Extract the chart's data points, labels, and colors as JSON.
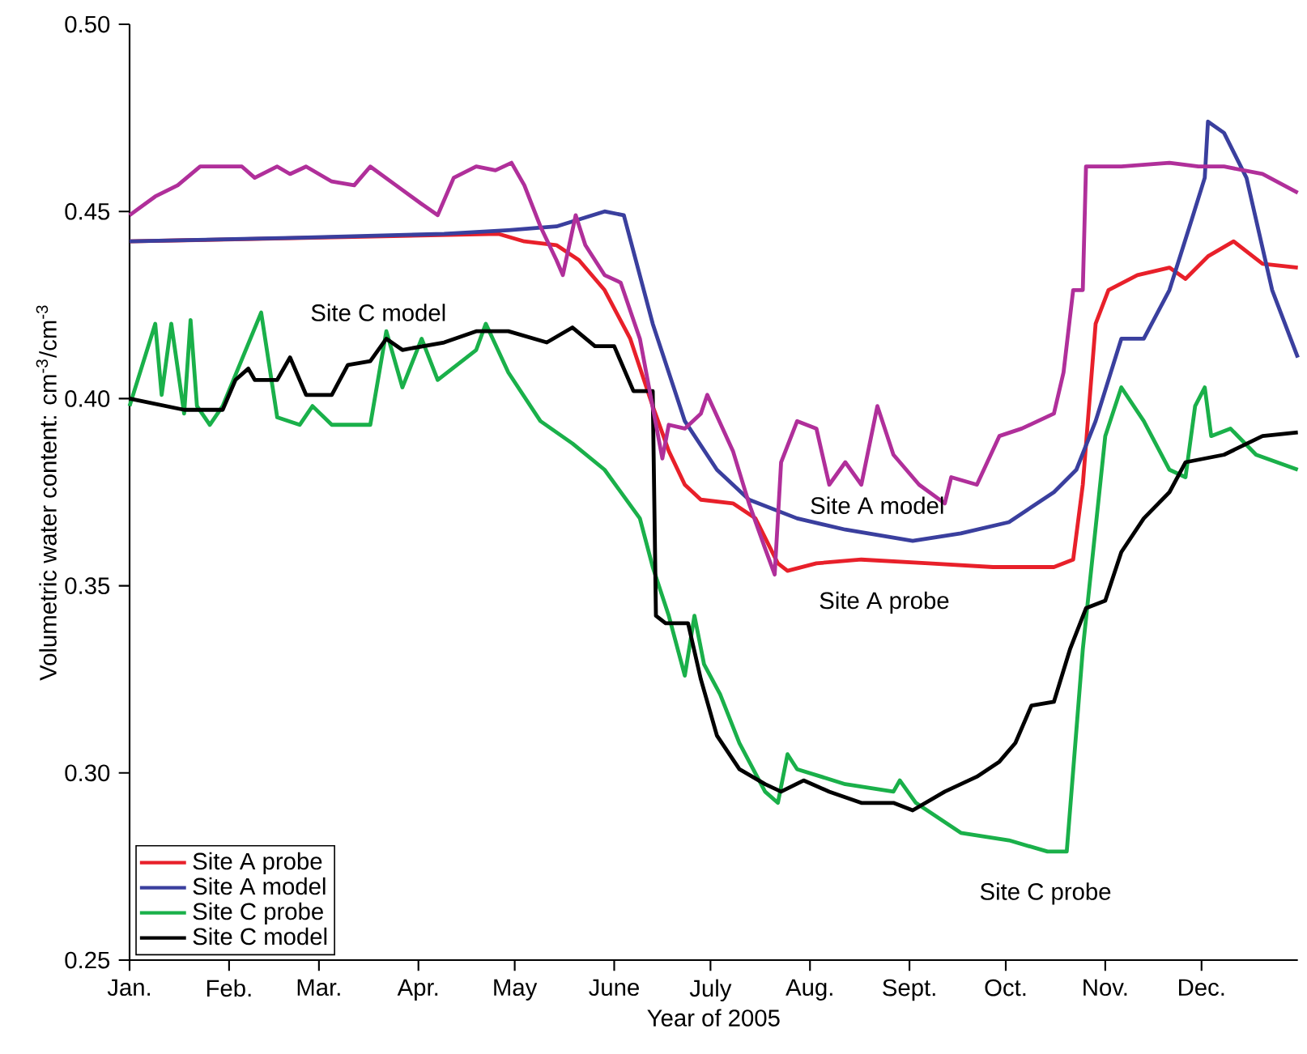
{
  "chart_data": {
    "type": "line",
    "xlabel": "Year of 2005",
    "ylabel": "Volumetric water content: cm$^{-3}$/cm$^{-3}$",
    "xlim": [
      "2005-01-01",
      "2005-12-31"
    ],
    "ylim": [
      0.25,
      0.5
    ],
    "xticks": [
      {
        "value": "2005-01-01",
        "label": "Jan."
      },
      {
        "value": "2005-02-01",
        "label": "Feb."
      },
      {
        "value": "2005-03-01",
        "label": "Mar."
      },
      {
        "value": "2005-04-01",
        "label": "Apr."
      },
      {
        "value": "2005-05-01",
        "label": "May"
      },
      {
        "value": "2005-06-01",
        "label": "June"
      },
      {
        "value": "2005-07-01",
        "label": "July"
      },
      {
        "value": "2005-08-01",
        "label": "Aug."
      },
      {
        "value": "2005-09-01",
        "label": "Sept."
      },
      {
        "value": "2005-10-01",
        "label": "Oct."
      },
      {
        "value": "2005-11-01",
        "label": "Nov."
      },
      {
        "value": "2005-12-01",
        "label": "Dec."
      }
    ],
    "yticks": [
      {
        "value": 0.25,
        "label": "0.25"
      },
      {
        "value": 0.3,
        "label": "0.30"
      },
      {
        "value": 0.35,
        "label": "0.35"
      },
      {
        "value": 0.4,
        "label": "0.40"
      },
      {
        "value": 0.45,
        "label": "0.45"
      },
      {
        "value": 0.5,
        "label": "0.50"
      }
    ],
    "legend": "bottom left",
    "series": [
      {
        "name": "Site A probe",
        "color": "#e8202a",
        "x": [
          "2005-01-01",
          "2005-04-26",
          "2005-05-04",
          "2005-05-14",
          "2005-05-21",
          "2005-05-29",
          "2005-06-06",
          "2005-06-13",
          "2005-06-18",
          "2005-06-23",
          "2005-06-28",
          "2005-07-08",
          "2005-07-15",
          "2005-07-22",
          "2005-07-25",
          "2005-08-03",
          "2005-08-17",
          "2005-09-07",
          "2005-09-27",
          "2005-10-16",
          "2005-10-22",
          "2005-10-25",
          "2005-10-29",
          "2005-11-02",
          "2005-11-11",
          "2005-11-21",
          "2005-11-26",
          "2005-12-03",
          "2005-12-11",
          "2005-12-20",
          "2005-12-31"
        ],
        "values": [
          0.442,
          0.444,
          0.442,
          0.441,
          0.437,
          0.429,
          0.416,
          0.398,
          0.386,
          0.377,
          0.373,
          0.372,
          0.368,
          0.356,
          0.354,
          0.356,
          0.357,
          0.356,
          0.355,
          0.355,
          0.357,
          0.377,
          0.42,
          0.429,
          0.433,
          0.435,
          0.432,
          0.438,
          0.442,
          0.436,
          0.435
        ]
      },
      {
        "name": "Site A model",
        "color": "#3a3f9e",
        "x": [
          "2005-01-01",
          "2005-02-23",
          "2005-04-09",
          "2005-04-29",
          "2005-05-14",
          "2005-05-29",
          "2005-06-04",
          "2005-06-13",
          "2005-06-23",
          "2005-07-03",
          "2005-07-13",
          "2005-07-28",
          "2005-08-12",
          "2005-09-02",
          "2005-09-17",
          "2005-10-02",
          "2005-10-16",
          "2005-10-23",
          "2005-10-29",
          "2005-11-06",
          "2005-11-13",
          "2005-11-21",
          "2005-11-28",
          "2005-12-02",
          "2005-12-03",
          "2005-12-08",
          "2005-12-15",
          "2005-12-23",
          "2005-12-31"
        ],
        "values": [
          0.442,
          0.443,
          0.444,
          0.445,
          0.446,
          0.45,
          0.449,
          0.42,
          0.394,
          0.381,
          0.373,
          0.368,
          0.365,
          0.362,
          0.364,
          0.367,
          0.375,
          0.381,
          0.394,
          0.416,
          0.416,
          0.429,
          0.448,
          0.459,
          0.474,
          0.471,
          0.459,
          0.429,
          0.411
        ]
      },
      {
        "name": "Site C probe",
        "color": "#1ab04a",
        "x": [
          "2005-01-01",
          "2005-01-09",
          "2005-01-11",
          "2005-01-14",
          "2005-01-18",
          "2005-01-20",
          "2005-01-22",
          "2005-01-26",
          "2005-01-30",
          "2005-02-11",
          "2005-02-16",
          "2005-02-23",
          "2005-02-27",
          "2005-03-05",
          "2005-03-17",
          "2005-03-22",
          "2005-03-27",
          "2005-04-02",
          "2005-04-07",
          "2005-04-19",
          "2005-04-22",
          "2005-04-29",
          "2005-05-09",
          "2005-05-19",
          "2005-05-29",
          "2005-06-09",
          "2005-06-13",
          "2005-06-18",
          "2005-06-23",
          "2005-06-26",
          "2005-06-29",
          "2005-07-04",
          "2005-07-10",
          "2005-07-18",
          "2005-07-22",
          "2005-07-25",
          "2005-07-28",
          "2005-08-12",
          "2005-08-27",
          "2005-08-29",
          "2005-09-03",
          "2005-09-17",
          "2005-10-02",
          "2005-10-14",
          "2005-10-20",
          "2005-10-25",
          "2005-11-01",
          "2005-11-06",
          "2005-11-13",
          "2005-11-21",
          "2005-11-26",
          "2005-11-29",
          "2005-12-02",
          "2005-12-04",
          "2005-12-10",
          "2005-12-18",
          "2005-12-31"
        ],
        "values": [
          0.398,
          0.42,
          0.401,
          0.42,
          0.396,
          0.421,
          0.398,
          0.393,
          0.398,
          0.423,
          0.395,
          0.393,
          0.398,
          0.393,
          0.393,
          0.418,
          0.403,
          0.416,
          0.405,
          0.413,
          0.42,
          0.407,
          0.394,
          0.388,
          0.381,
          0.368,
          0.355,
          0.342,
          0.326,
          0.342,
          0.329,
          0.321,
          0.308,
          0.295,
          0.292,
          0.305,
          0.301,
          0.297,
          0.295,
          0.298,
          0.292,
          0.284,
          0.282,
          0.279,
          0.279,
          0.333,
          0.39,
          0.403,
          0.394,
          0.381,
          0.379,
          0.398,
          0.403,
          0.39,
          0.392,
          0.385,
          0.381
        ]
      },
      {
        "name": "Site C model",
        "color": "#000000",
        "x": [
          "2005-01-01",
          "2005-01-18",
          "2005-01-23",
          "2005-01-30",
          "2005-02-03",
          "2005-02-07",
          "2005-02-09",
          "2005-02-16",
          "2005-02-20",
          "2005-02-25",
          "2005-03-05",
          "2005-03-10",
          "2005-03-17",
          "2005-03-22",
          "2005-03-27",
          "2005-04-09",
          "2005-04-19",
          "2005-04-29",
          "2005-05-11",
          "2005-05-19",
          "2005-05-26",
          "2005-06-01",
          "2005-06-07",
          "2005-06-13",
          "2005-06-14",
          "2005-06-17",
          "2005-06-24",
          "2005-06-28",
          "2005-07-03",
          "2005-07-10",
          "2005-07-18",
          "2005-07-23",
          "2005-07-30",
          "2005-08-07",
          "2005-08-17",
          "2005-08-27",
          "2005-09-02",
          "2005-09-12",
          "2005-09-22",
          "2005-09-29",
          "2005-10-04",
          "2005-10-09",
          "2005-10-16",
          "2005-10-21",
          "2005-10-26",
          "2005-11-01",
          "2005-11-06",
          "2005-11-13",
          "2005-11-21",
          "2005-11-26",
          "2005-12-08",
          "2005-12-20",
          "2005-12-31"
        ],
        "values": [
          0.4,
          0.397,
          0.397,
          0.397,
          0.405,
          0.408,
          0.405,
          0.405,
          0.411,
          0.401,
          0.401,
          0.409,
          0.41,
          0.416,
          0.413,
          0.415,
          0.418,
          0.418,
          0.415,
          0.419,
          0.414,
          0.414,
          0.402,
          0.402,
          0.342,
          0.34,
          0.34,
          0.325,
          0.31,
          0.301,
          0.297,
          0.295,
          0.298,
          0.295,
          0.292,
          0.292,
          0.29,
          0.295,
          0.299,
          0.303,
          0.308,
          0.318,
          0.319,
          0.333,
          0.344,
          0.346,
          0.359,
          0.368,
          0.375,
          0.383,
          0.385,
          0.39,
          0.391
        ]
      },
      {
        "color": "#b02f9a",
        "x": [
          "2005-01-01",
          "2005-01-09",
          "2005-01-16",
          "2005-01-23",
          "2005-02-05",
          "2005-02-09",
          "2005-02-16",
          "2005-02-20",
          "2005-02-25",
          "2005-03-05",
          "2005-03-12",
          "2005-03-17",
          "2005-03-25",
          "2005-04-02",
          "2005-04-07",
          "2005-04-12",
          "2005-04-19",
          "2005-04-25",
          "2005-04-30",
          "2005-05-04",
          "2005-05-09",
          "2005-05-14",
          "2005-05-16",
          "2005-05-20",
          "2005-05-23",
          "2005-05-29",
          "2005-06-03",
          "2005-06-09",
          "2005-06-16",
          "2005-06-18",
          "2005-06-23",
          "2005-06-28",
          "2005-06-30",
          "2005-07-08",
          "2005-07-13",
          "2005-07-18",
          "2005-07-21",
          "2005-07-23",
          "2005-07-28",
          "2005-08-03",
          "2005-08-07",
          "2005-08-12",
          "2005-08-17",
          "2005-08-22",
          "2005-08-27",
          "2005-09-04",
          "2005-09-12",
          "2005-09-14",
          "2005-09-22",
          "2005-09-29",
          "2005-10-06",
          "2005-10-16",
          "2005-10-19",
          "2005-10-22",
          "2005-10-25",
          "2005-10-26",
          "2005-11-06",
          "2005-11-21",
          "2005-11-30",
          "2005-12-08",
          "2005-12-20",
          "2005-12-31"
        ],
        "values": [
          0.449,
          0.454,
          0.457,
          0.462,
          0.462,
          0.459,
          0.462,
          0.46,
          0.462,
          0.458,
          0.457,
          0.462,
          0.457,
          0.452,
          0.449,
          0.459,
          0.462,
          0.461,
          0.463,
          0.457,
          0.446,
          0.437,
          0.433,
          0.449,
          0.441,
          0.433,
          0.431,
          0.416,
          0.384,
          0.393,
          0.392,
          0.396,
          0.401,
          0.386,
          0.372,
          0.36,
          0.353,
          0.383,
          0.394,
          0.392,
          0.377,
          0.383,
          0.377,
          0.398,
          0.385,
          0.377,
          0.372,
          0.379,
          0.377,
          0.39,
          0.392,
          0.396,
          0.407,
          0.429,
          0.429,
          0.462,
          0.462,
          0.463,
          0.462,
          0.462,
          0.46,
          0.455
        ]
      }
    ],
    "annotations": [
      "Site C model",
      "Site A model",
      "Site A probe",
      "Site C probe"
    ]
  }
}
